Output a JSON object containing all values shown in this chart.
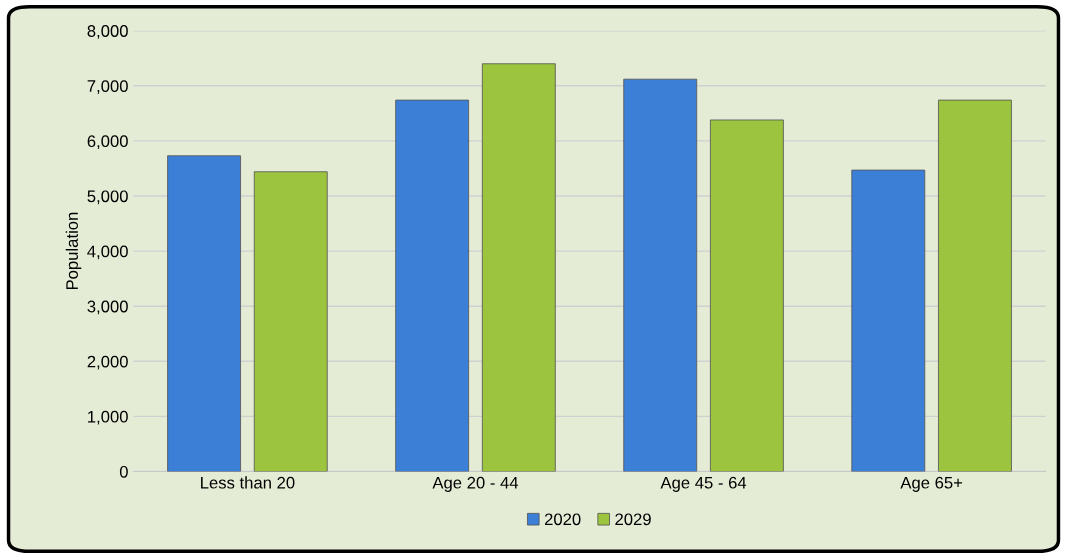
{
  "chart_data": {
    "type": "bar",
    "ylabel": "Population",
    "categories": [
      "Less than 20",
      "Age 20 - 44",
      "Age 45 - 64",
      "Age 65+"
    ],
    "series": [
      {
        "name": "2020",
        "color": "#3b7fd6",
        "values": [
          5730,
          6740,
          7120,
          5470
        ]
      },
      {
        "name": "2029",
        "color": "#9cc43e",
        "values": [
          5440,
          7400,
          6380,
          6740
        ]
      }
    ],
    "ylim": [
      0,
      8000
    ],
    "yticks": [
      {
        "value": 0,
        "label": "0"
      },
      {
        "value": 1000,
        "label": "1,000"
      },
      {
        "value": 2000,
        "label": "2,000"
      },
      {
        "value": 3000,
        "label": "3,000"
      },
      {
        "value": 4000,
        "label": "4,000"
      },
      {
        "value": 5000,
        "label": "5,000"
      },
      {
        "value": 6000,
        "label": "6,000"
      },
      {
        "value": 7000,
        "label": "7,000"
      },
      {
        "value": 8000,
        "label": "8,000"
      }
    ],
    "grid": "y",
    "legend": "bottom"
  }
}
